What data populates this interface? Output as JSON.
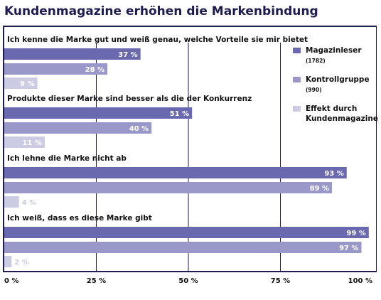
{
  "title": "Kundenmagazine erhöhen die Markenbindung",
  "legend": [
    {
      "name": "Magazinleser",
      "note": "(1782)",
      "color": "#6a68ae"
    },
    {
      "name": "Kontrollgruppe",
      "note": "(990)",
      "color": "#9a98c8"
    },
    {
      "name": "Effekt durch Kundenmagazine",
      "note": "",
      "color": "#cccbe4"
    }
  ],
  "chart_data": {
    "type": "bar",
    "orientation": "horizontal",
    "title": "Kundenmagazine erhöhen die Markenbindung",
    "categories": [
      "Ich kenne die Marke gut und weiß genau, welche Vorteile sie mir bietet",
      "Produkte dieser Marke sind besser als die der Konkurrenz",
      "Ich lehne die Marke nicht ab",
      "Ich weiß, dass es diese Marke gibt"
    ],
    "series": [
      {
        "name": "Magazinleser (1782)",
        "values": [
          37,
          51,
          93,
          99
        ],
        "labels": [
          "37 %",
          "51 %",
          "93 %",
          "99 %"
        ],
        "color": "#6a68ae"
      },
      {
        "name": "Kontrollgruppe (990)",
        "values": [
          28,
          40,
          89,
          97
        ],
        "labels": [
          "28 %",
          "40 %",
          "89 %",
          "97 %"
        ],
        "color": "#9a98c8"
      },
      {
        "name": "Effekt durch Kundenmagazine",
        "values": [
          9,
          11,
          4,
          2
        ],
        "labels": [
          "9 %",
          "11 %",
          "4 %",
          "2 %"
        ],
        "color": "#cccbe4"
      }
    ],
    "xlim": [
      0,
      100
    ],
    "xticks": [
      0,
      25,
      50,
      75,
      100
    ],
    "xtick_labels": [
      "0 %",
      "25 %",
      "50 %",
      "75 %",
      "100 %"
    ],
    "grid": true,
    "legend_position": "top-right"
  }
}
